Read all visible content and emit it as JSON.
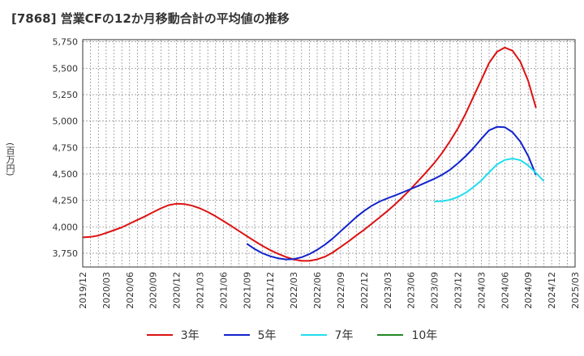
{
  "title": "[7868]  営業CFの12か月移動合計の平均値の推移",
  "y_unit_label": "(百万円)",
  "chart_data": {
    "type": "line",
    "title": "[7868]  営業CFの12か月移動合計の平均値の推移",
    "ylabel": "(百万円)",
    "xlabel": "",
    "ylim": [
      3620,
      5770
    ],
    "yticks": [
      3750,
      4000,
      4250,
      4500,
      4750,
      5000,
      5250,
      5500,
      5750
    ],
    "ytick_labels": [
      "3,750",
      "4,000",
      "4,250",
      "4,500",
      "4,750",
      "5,000",
      "5,250",
      "5,500",
      "5,750"
    ],
    "xlim": [
      "2019-12",
      "2025-03"
    ],
    "xtick_labels": [
      "2019/12",
      "2020/03",
      "2020/06",
      "2020/09",
      "2020/12",
      "2021/03",
      "2021/06",
      "2021/09",
      "2021/12",
      "2022/03",
      "2022/06",
      "2022/09",
      "2022/12",
      "2023/03",
      "2023/06",
      "2023/09",
      "2023/12",
      "2024/03",
      "2024/06",
      "2024/09",
      "2024/12",
      "2025/03"
    ],
    "grid": true,
    "legend_position": "bottom",
    "series": [
      {
        "name": "3年",
        "color": "#dd1111",
        "points": [
          [
            "2019-12",
            3900
          ],
          [
            "2020-01",
            3905
          ],
          [
            "2020-02",
            3918
          ],
          [
            "2020-03",
            3942
          ],
          [
            "2020-04",
            3968
          ],
          [
            "2020-05",
            3995
          ],
          [
            "2020-06",
            4030
          ],
          [
            "2020-07",
            4065
          ],
          [
            "2020-08",
            4100
          ],
          [
            "2020-09",
            4138
          ],
          [
            "2020-10",
            4175
          ],
          [
            "2020-11",
            4205
          ],
          [
            "2020-12",
            4218
          ],
          [
            "2021-01",
            4215
          ],
          [
            "2021-02",
            4200
          ],
          [
            "2021-03",
            4175
          ],
          [
            "2021-04",
            4140
          ],
          [
            "2021-05",
            4100
          ],
          [
            "2021-06",
            4055
          ],
          [
            "2021-07",
            4008
          ],
          [
            "2021-08",
            3960
          ],
          [
            "2021-09",
            3912
          ],
          [
            "2021-10",
            3865
          ],
          [
            "2021-11",
            3820
          ],
          [
            "2021-12",
            3780
          ],
          [
            "2022-01",
            3745
          ],
          [
            "2022-02",
            3715
          ],
          [
            "2022-03",
            3692
          ],
          [
            "2022-04",
            3678
          ],
          [
            "2022-05",
            3678
          ],
          [
            "2022-06",
            3692
          ],
          [
            "2022-07",
            3718
          ],
          [
            "2022-08",
            3758
          ],
          [
            "2022-09",
            3810
          ],
          [
            "2022-10",
            3862
          ],
          [
            "2022-11",
            3918
          ],
          [
            "2022-12",
            3972
          ],
          [
            "2023-01",
            4030
          ],
          [
            "2023-02",
            4090
          ],
          [
            "2023-03",
            4150
          ],
          [
            "2023-04",
            4215
          ],
          [
            "2023-05",
            4285
          ],
          [
            "2023-06",
            4360
          ],
          [
            "2023-07",
            4440
          ],
          [
            "2023-08",
            4520
          ],
          [
            "2023-09",
            4605
          ],
          [
            "2023-10",
            4700
          ],
          [
            "2023-11",
            4810
          ],
          [
            "2023-12",
            4930
          ],
          [
            "2024-01",
            5070
          ],
          [
            "2024-02",
            5230
          ],
          [
            "2024-03",
            5390
          ],
          [
            "2024-04",
            5550
          ],
          [
            "2024-05",
            5655
          ],
          [
            "2024-06",
            5695
          ],
          [
            "2024-07",
            5665
          ],
          [
            "2024-08",
            5560
          ],
          [
            "2024-09",
            5380
          ],
          [
            "2024-10",
            5125
          ]
        ]
      },
      {
        "name": "5年",
        "color": "#1122cc",
        "points": [
          [
            "2021-09",
            3840
          ],
          [
            "2021-10",
            3790
          ],
          [
            "2021-11",
            3750
          ],
          [
            "2021-12",
            3722
          ],
          [
            "2022-01",
            3702
          ],
          [
            "2022-02",
            3692
          ],
          [
            "2022-03",
            3695
          ],
          [
            "2022-04",
            3712
          ],
          [
            "2022-05",
            3742
          ],
          [
            "2022-06",
            3782
          ],
          [
            "2022-07",
            3832
          ],
          [
            "2022-08",
            3890
          ],
          [
            "2022-09",
            3958
          ],
          [
            "2022-10",
            4025
          ],
          [
            "2022-11",
            4092
          ],
          [
            "2022-12",
            4150
          ],
          [
            "2023-01",
            4200
          ],
          [
            "2023-02",
            4240
          ],
          [
            "2023-03",
            4270
          ],
          [
            "2023-04",
            4298
          ],
          [
            "2023-05",
            4328
          ],
          [
            "2023-06",
            4358
          ],
          [
            "2023-07",
            4390
          ],
          [
            "2023-08",
            4422
          ],
          [
            "2023-09",
            4455
          ],
          [
            "2023-10",
            4492
          ],
          [
            "2023-11",
            4540
          ],
          [
            "2023-12",
            4600
          ],
          [
            "2024-01",
            4668
          ],
          [
            "2024-02",
            4745
          ],
          [
            "2024-03",
            4832
          ],
          [
            "2024-04",
            4912
          ],
          [
            "2024-05",
            4945
          ],
          [
            "2024-06",
            4942
          ],
          [
            "2024-07",
            4895
          ],
          [
            "2024-08",
            4805
          ],
          [
            "2024-09",
            4670
          ],
          [
            "2024-10",
            4490
          ]
        ]
      },
      {
        "name": "7年",
        "color": "#22ddee",
        "points": [
          [
            "2023-09",
            4240
          ],
          [
            "2023-10",
            4243
          ],
          [
            "2023-11",
            4255
          ],
          [
            "2023-12",
            4282
          ],
          [
            "2024-01",
            4322
          ],
          [
            "2024-02",
            4375
          ],
          [
            "2024-03",
            4438
          ],
          [
            "2024-04",
            4515
          ],
          [
            "2024-05",
            4590
          ],
          [
            "2024-06",
            4632
          ],
          [
            "2024-07",
            4645
          ],
          [
            "2024-08",
            4630
          ],
          [
            "2024-09",
            4580
          ],
          [
            "2024-10",
            4510
          ],
          [
            "2024-11",
            4432
          ]
        ]
      },
      {
        "name": "10年",
        "color": "#228822",
        "points": []
      }
    ]
  }
}
